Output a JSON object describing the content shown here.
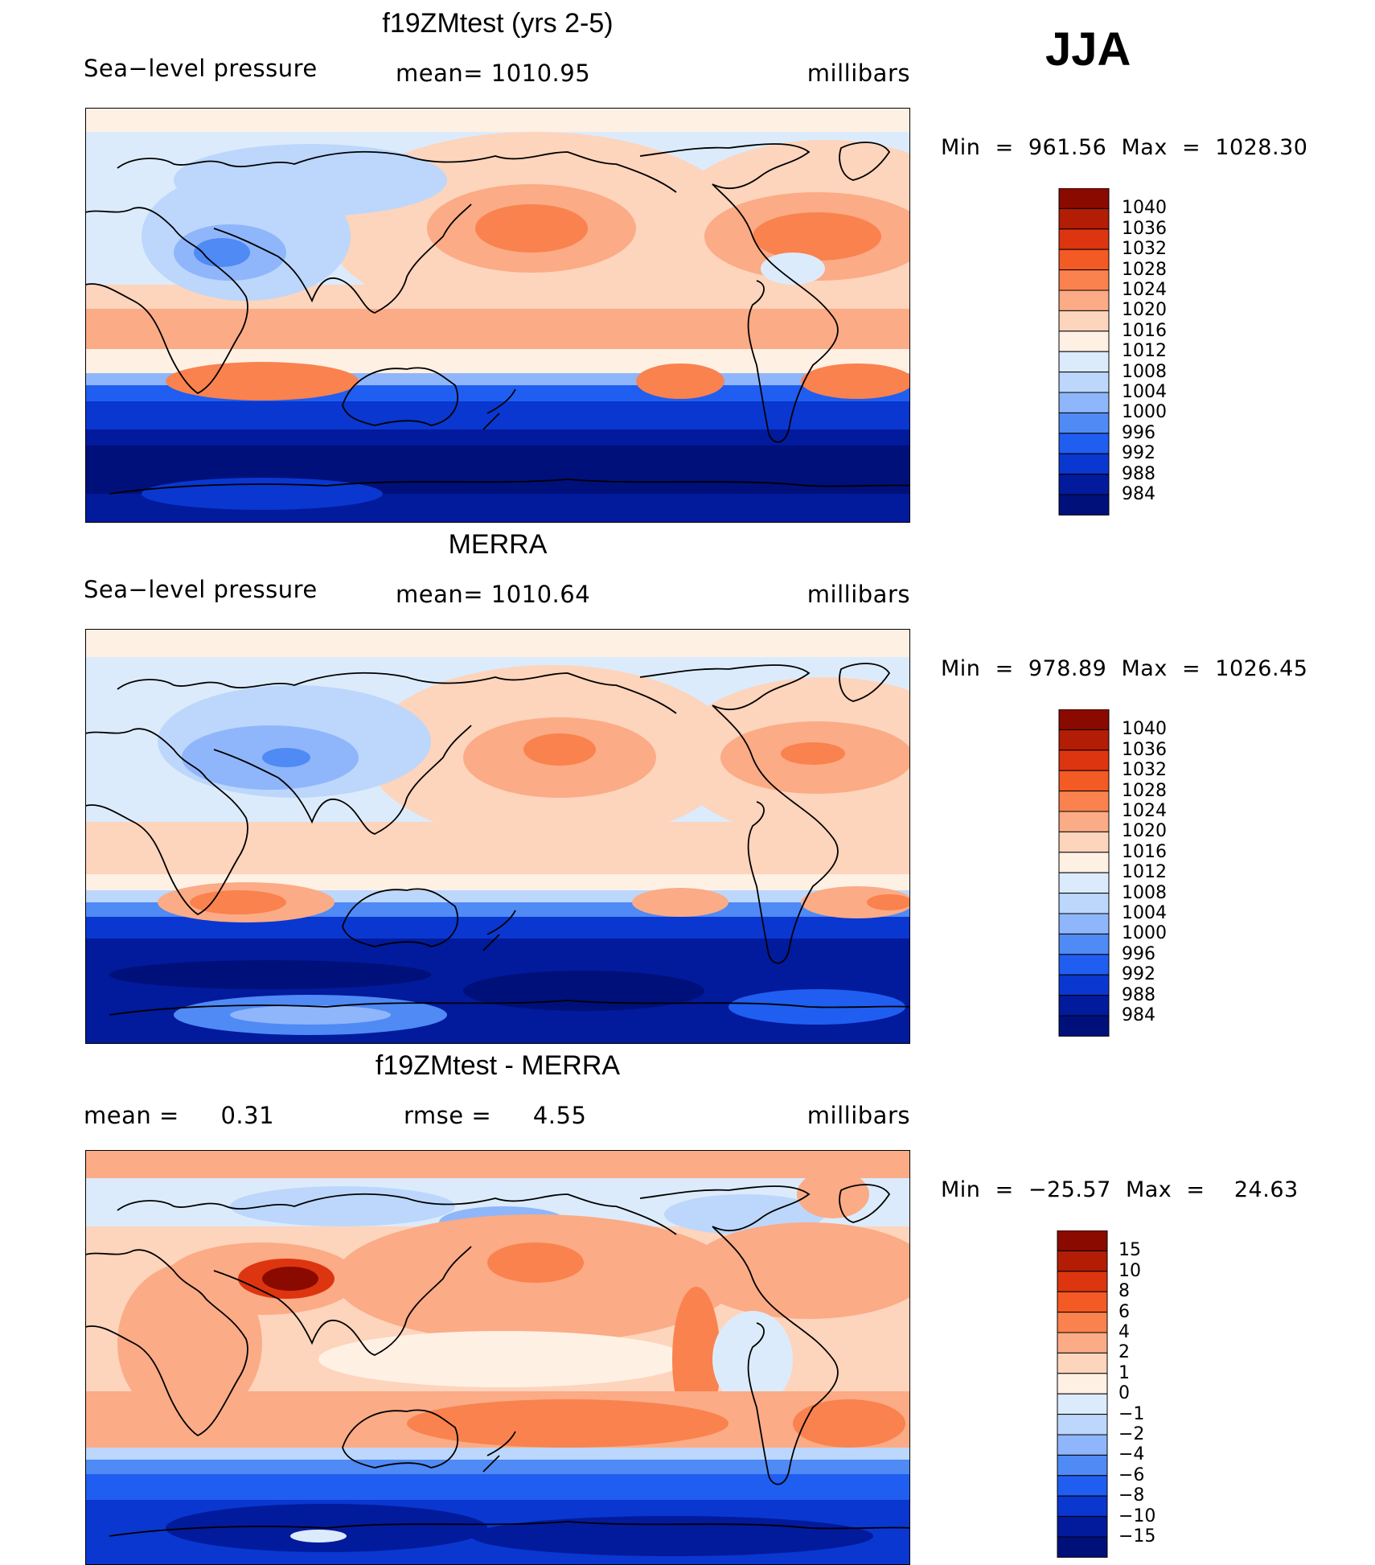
{
  "season": "JJA",
  "panels": [
    {
      "title": "f19ZMtest (yrs 2-5)",
      "variable": "Sea−level pressure",
      "mean_text": "mean=  1010.95",
      "units": "millibars",
      "minmax_text": "Min  =  961.56  Max  =  1028.30",
      "legend": [
        "1040",
        "1036",
        "1032",
        "1028",
        "1024",
        "1020",
        "1016",
        "1012",
        "1008",
        "1004",
        "1000",
        "996",
        "992",
        "988",
        "984"
      ]
    },
    {
      "title": "MERRA",
      "variable": "Sea−level pressure",
      "mean_text": "mean=  1010.64",
      "units": "millibars",
      "minmax_text": "Min  =  978.89  Max  =  1026.45",
      "legend": [
        "1040",
        "1036",
        "1032",
        "1028",
        "1024",
        "1020",
        "1016",
        "1012",
        "1008",
        "1004",
        "1000",
        "996",
        "992",
        "988",
        "984"
      ]
    },
    {
      "title": "f19ZMtest - MERRA",
      "mean_label": "mean  =",
      "mean_value": "0.31",
      "rmse_label": "rmse  =",
      "rmse_value": "4.55",
      "units": "millibars",
      "minmax_text": "Min  =  −25.57  Max  =    24.63",
      "legend": [
        "15",
        "10",
        "8",
        "6",
        "4",
        "2",
        "1",
        "0",
        "−1",
        "−2",
        "−4",
        "−6",
        "−8",
        "−10",
        "−15"
      ]
    }
  ],
  "colors": {
    "pressure_scale": [
      "#8a0a00",
      "#b31d05",
      "#dd3510",
      "#f45a24",
      "#f9824e",
      "#fbab86",
      "#fdd4bc",
      "#fff0e4",
      "#dcebfb",
      "#bcd7fb",
      "#8fb6fa",
      "#4f8af5",
      "#1f5ef0",
      "#0a37d0",
      "#021a9c",
      "#00107a"
    ],
    "diff_scale": [
      "#8a0a00",
      "#b31d05",
      "#dd3510",
      "#f45a24",
      "#f9824e",
      "#fbab86",
      "#fdd4bc",
      "#fff0e4",
      "#dcebfb",
      "#bcd7fb",
      "#8fb6fa",
      "#4f8af5",
      "#1f5ef0",
      "#0a37d0",
      "#021a9c",
      "#00107a"
    ]
  }
}
